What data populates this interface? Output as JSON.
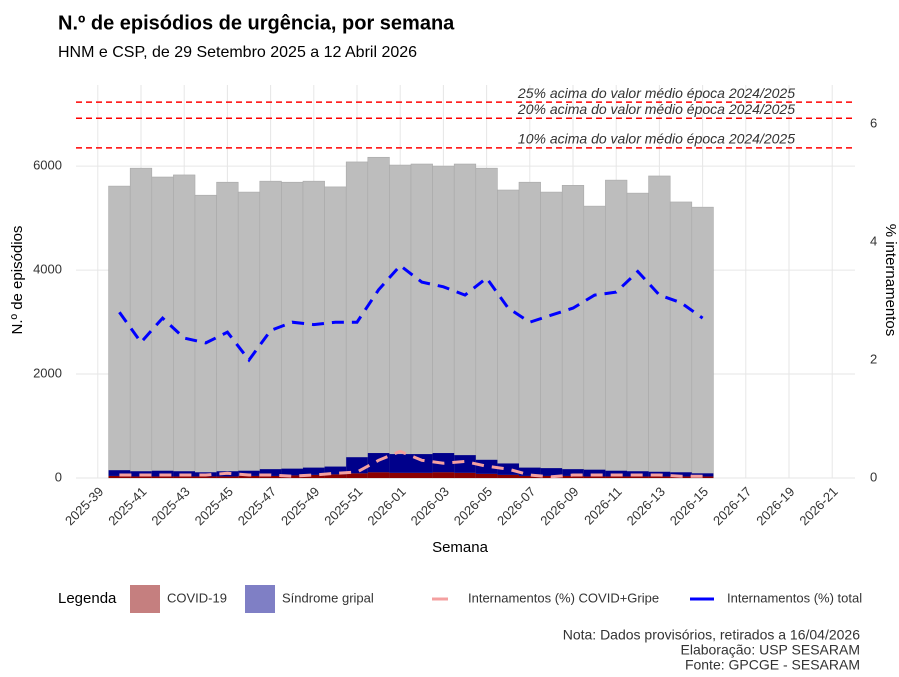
{
  "chart_data": {
    "type": "bar",
    "title": "N.º de episódios de urgência, por semana",
    "subtitle": "HNM e CSP, de 29 Setembro 2025 a 12 Abril 2026",
    "x_label": "Semana",
    "y_label": "N.º de episódios",
    "y2_label": "% internamentos",
    "categories": [
      "2025-39",
      null,
      "2025-41",
      null,
      "2025-43",
      null,
      "2025-45",
      null,
      "2025-47",
      null,
      "2025-49",
      null,
      "2025-51",
      null,
      "2026-01",
      null,
      "2026-03",
      null,
      "2026-05",
      null,
      "2026-07",
      null,
      "2026-09",
      null,
      "2026-11",
      null,
      "2026-13",
      null,
      "2026-15",
      null,
      "2026-17",
      null,
      "2026-19",
      null,
      "2026-21"
    ],
    "values": [
      null,
      5615,
      5960,
      5790,
      5830,
      5440,
      5690,
      5500,
      5710,
      5690,
      5710,
      5600,
      6080,
      6170,
      6020,
      6040,
      6000,
      6040,
      5960,
      5540,
      5690,
      5500,
      5630,
      5230,
      5730,
      5480,
      5810,
      5310,
      5210,
      null,
      null,
      null,
      null,
      null,
      null
    ],
    "color": "#bdbdbd",
    "series": [
      {
        "name": "COVID-19",
        "color": "#8b0000",
        "values": [
          null,
          40,
          30,
          30,
          30,
          30,
          30,
          40,
          40,
          50,
          60,
          70,
          90,
          110,
          100,
          100,
          110,
          100,
          80,
          60,
          40,
          40,
          40,
          30,
          30,
          30,
          30,
          30,
          30,
          null,
          null,
          null,
          null,
          null,
          null
        ]
      },
      {
        "name": "Síndrome gripal",
        "color": "#00008b",
        "values": [
          null,
          110,
          100,
          110,
          100,
          80,
          100,
          100,
          130,
          130,
          140,
          150,
          310,
          370,
          360,
          360,
          370,
          340,
          270,
          220,
          160,
          150,
          130,
          130,
          110,
          100,
          90,
          80,
          60,
          null,
          null,
          null,
          null,
          null,
          null
        ]
      },
      {
        "name": "Internamentos (%) COVID+Gripe",
        "color": "#f4a0a0",
        "axis": "y2",
        "type": "line",
        "values": [
          null,
          0.05,
          0.05,
          0.05,
          0.05,
          0.05,
          0.08,
          0.05,
          0.05,
          0.03,
          0.05,
          0.08,
          0.1,
          0.3,
          0.45,
          0.3,
          0.25,
          0.28,
          0.2,
          0.15,
          0.05,
          0.02,
          0.05,
          0.05,
          0.05,
          0.05,
          0.05,
          0.03,
          0.03,
          null,
          null,
          null,
          null,
          null,
          null
        ]
      },
      {
        "name": "Internamentos (%) total",
        "color": "#0000ff",
        "axis": "y2",
        "type": "line",
        "values": [
          null,
          2.81,
          2.3,
          2.71,
          2.37,
          2.29,
          2.47,
          2.0,
          2.5,
          2.64,
          2.6,
          2.64,
          2.64,
          3.19,
          3.6,
          3.32,
          3.24,
          3.1,
          3.39,
          2.88,
          2.64,
          2.76,
          2.88,
          3.1,
          3.15,
          3.5,
          3.1,
          2.97,
          2.71,
          null,
          null,
          null,
          null,
          null,
          null
        ]
      }
    ],
    "reference_lines": [
      {
        "value": 7230,
        "label": "25% acima do valor médio época 2024/2025",
        "color": "#ff0000"
      },
      {
        "value": 6920,
        "label": "20% acima do valor médio época 2024/2025",
        "color": "#ff0000"
      },
      {
        "value": 6350,
        "label": "10% acima do valor médio época 2024/2025",
        "color": "#ff0000"
      }
    ],
    "ylim": [
      0,
      7560
    ],
    "yticks": [
      0,
      2000,
      4000,
      6000
    ],
    "y2lim": [
      0,
      6.66
    ],
    "y2ticks": [
      0,
      2,
      4,
      6
    ],
    "grid": true,
    "legend_title": "Legenda",
    "legend_position": "bottom",
    "notes": [
      "Nota: Dados provisórios, retirados a 16/04/2026",
      "Elaboração: USP SESARAM",
      "Fonte: GPCGE - SESARAM"
    ]
  }
}
